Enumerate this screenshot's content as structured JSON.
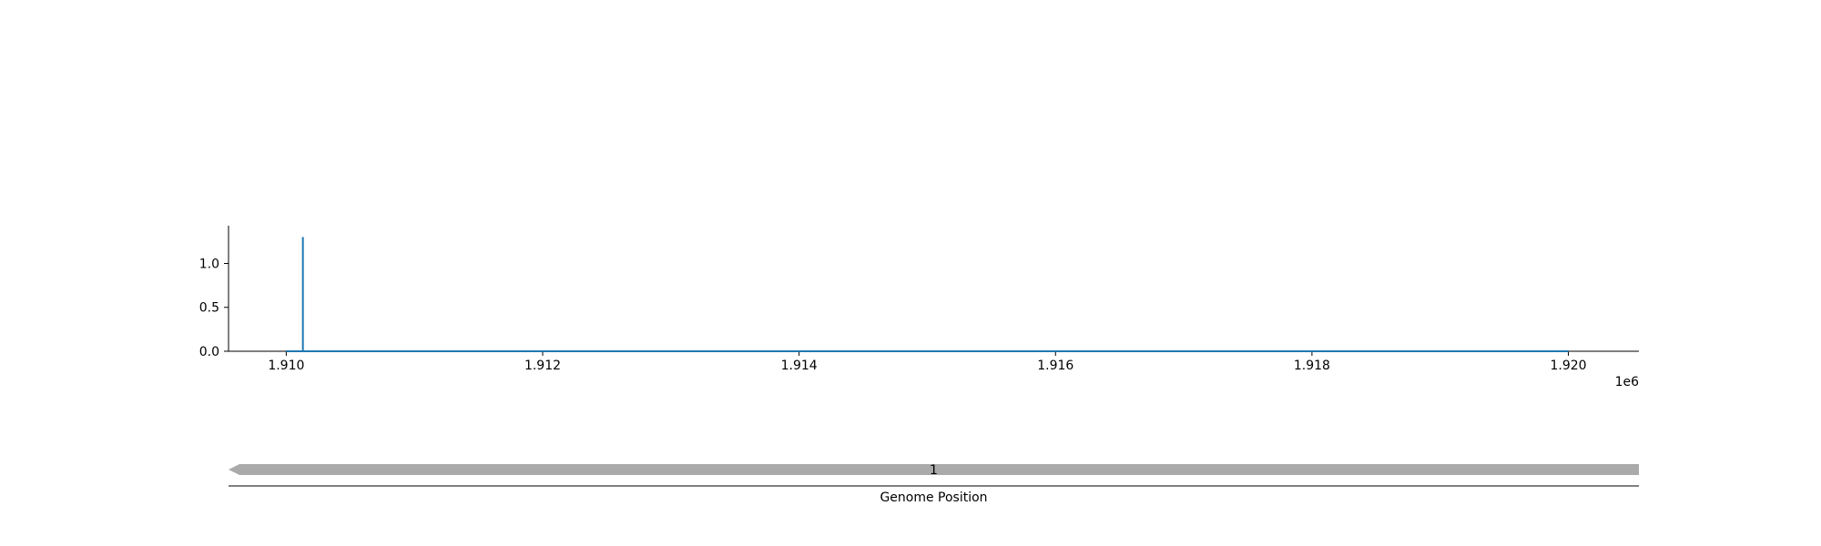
{
  "chart_data": [
    {
      "type": "line",
      "title": "",
      "xlabel": "",
      "ylabel": "",
      "x_offset_label": "1e6",
      "xlim": [
        1.90955,
        1.92055
      ],
      "ylim": [
        0.0,
        1.43
      ],
      "xticks": [
        1.91,
        1.912,
        1.914,
        1.916,
        1.918,
        1.92
      ],
      "xtick_labels": [
        "1.910",
        "1.912",
        "1.914",
        "1.916",
        "1.918",
        "1.920"
      ],
      "yticks": [
        0.0,
        0.5,
        1.0
      ],
      "ytick_labels": [
        "0.0",
        "0.5",
        "1.0"
      ],
      "grid": false,
      "series": [
        {
          "color": "#1f77b4",
          "x": [
            1.91,
            1.91013,
            1.91013,
            1.91013,
            1.92
          ],
          "y": [
            0.0,
            0.0,
            1.3,
            0.0,
            0.0
          ]
        }
      ]
    },
    {
      "type": "gene-track",
      "xlabel": "Genome Position",
      "features": [
        {
          "label": "1",
          "start": 1.90955,
          "end": 1.92055,
          "strand": "-",
          "color": "#aaaaaa"
        }
      ]
    }
  ]
}
